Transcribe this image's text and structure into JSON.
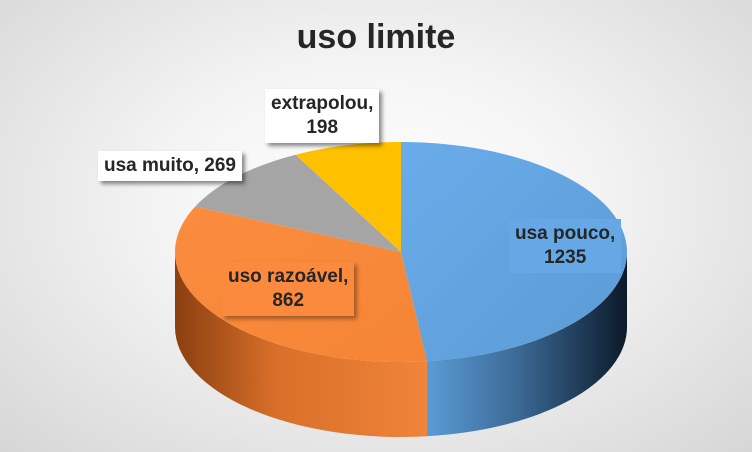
{
  "chart_data": {
    "type": "pie",
    "style": "3d",
    "title": "uso limite",
    "categories": [
      "usa pouco",
      "uso razoável",
      "usa muito",
      "extrapolou"
    ],
    "values": [
      1235,
      862,
      269,
      198
    ],
    "colors": [
      "#5b9bd5",
      "#ed7d31",
      "#a5a5a5",
      "#ffc000"
    ],
    "labels": [
      {
        "line1": "usa pouco,",
        "line2": "1235"
      },
      {
        "line1": "uso razoável,",
        "line2": "862"
      },
      {
        "line1": "usa muito, 269",
        "line2": ""
      },
      {
        "line1": "extrapolou,",
        "line2": "198"
      }
    ],
    "legend": "none"
  }
}
